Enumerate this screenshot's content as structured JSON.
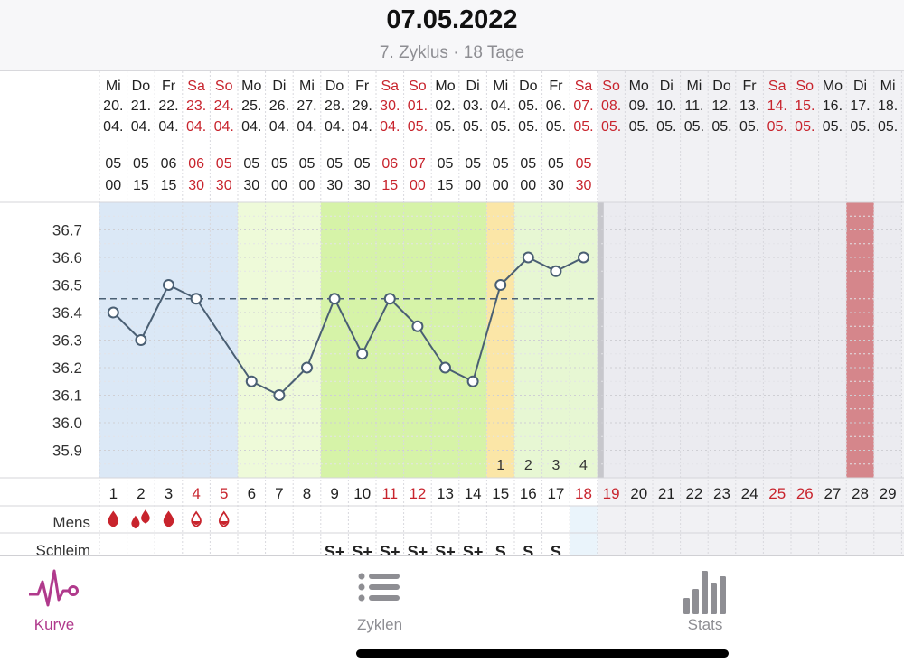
{
  "header": {
    "date": "07.05.2022",
    "cycle_info": "7. Zyklus · 18 Tage"
  },
  "colors": {
    "weekend_red": "#c8242d",
    "text_dark": "#222222",
    "line": "#4a5f73",
    "dashed_line": "#4a5f73",
    "menstruation_bg": "#dbe8f6",
    "fertile_light_bg": "#eefad9",
    "fertile_bg": "#d6f3a8",
    "peak_bg": "#fbe6a7",
    "post_bg": "#e7f7d3",
    "future_bg": "#ebebf0",
    "period_forecast": "#d5868b",
    "accent": "#b03a8c",
    "tab_inactive": "#8e8e93"
  },
  "days": [
    {
      "wd": "Mi",
      "d": "20.",
      "m": "04.",
      "h": "05",
      "mi": "00",
      "n": "1",
      "we": false
    },
    {
      "wd": "Do",
      "d": "21.",
      "m": "04.",
      "h": "05",
      "mi": "15",
      "n": "2",
      "we": false
    },
    {
      "wd": "Fr",
      "d": "22.",
      "m": "04.",
      "h": "06",
      "mi": "15",
      "n": "3",
      "we": false
    },
    {
      "wd": "Sa",
      "d": "23.",
      "m": "04.",
      "h": "06",
      "mi": "30",
      "n": "4",
      "we": true
    },
    {
      "wd": "So",
      "d": "24.",
      "m": "04.",
      "h": "05",
      "mi": "30",
      "n": "5",
      "we": true
    },
    {
      "wd": "Mo",
      "d": "25.",
      "m": "04.",
      "h": "05",
      "mi": "30",
      "n": "6",
      "we": false
    },
    {
      "wd": "Di",
      "d": "26.",
      "m": "04.",
      "h": "05",
      "mi": "00",
      "n": "7",
      "we": false
    },
    {
      "wd": "Mi",
      "d": "27.",
      "m": "04.",
      "h": "05",
      "mi": "00",
      "n": "8",
      "we": false
    },
    {
      "wd": "Do",
      "d": "28.",
      "m": "04.",
      "h": "05",
      "mi": "30",
      "n": "9",
      "we": false
    },
    {
      "wd": "Fr",
      "d": "29.",
      "m": "04.",
      "h": "05",
      "mi": "30",
      "n": "10",
      "we": false
    },
    {
      "wd": "Sa",
      "d": "30.",
      "m": "04.",
      "h": "06",
      "mi": "15",
      "n": "11",
      "we": true
    },
    {
      "wd": "So",
      "d": "01.",
      "m": "05.",
      "h": "07",
      "mi": "00",
      "n": "12",
      "we": true
    },
    {
      "wd": "Mo",
      "d": "02.",
      "m": "05.",
      "h": "05",
      "mi": "15",
      "n": "13",
      "we": false
    },
    {
      "wd": "Di",
      "d": "03.",
      "m": "05.",
      "h": "05",
      "mi": "00",
      "n": "14",
      "we": false
    },
    {
      "wd": "Mi",
      "d": "04.",
      "m": "05.",
      "h": "05",
      "mi": "00",
      "n": "15",
      "we": false
    },
    {
      "wd": "Do",
      "d": "05.",
      "m": "05.",
      "h": "05",
      "mi": "00",
      "n": "16",
      "we": false
    },
    {
      "wd": "Fr",
      "d": "06.",
      "m": "05.",
      "h": "05",
      "mi": "30",
      "n": "17",
      "we": false
    },
    {
      "wd": "Sa",
      "d": "07.",
      "m": "05.",
      "h": "05",
      "mi": "30",
      "n": "18",
      "we": true
    },
    {
      "wd": "So",
      "d": "08.",
      "m": "05.",
      "h": "",
      "mi": "",
      "n": "19",
      "we": true
    },
    {
      "wd": "Mo",
      "d": "09.",
      "m": "05.",
      "h": "",
      "mi": "",
      "n": "20",
      "we": false
    },
    {
      "wd": "Di",
      "d": "10.",
      "m": "05.",
      "h": "",
      "mi": "",
      "n": "21",
      "we": false
    },
    {
      "wd": "Mi",
      "d": "11.",
      "m": "05.",
      "h": "",
      "mi": "",
      "n": "22",
      "we": false
    },
    {
      "wd": "Do",
      "d": "12.",
      "m": "05.",
      "h": "",
      "mi": "",
      "n": "23",
      "we": false
    },
    {
      "wd": "Fr",
      "d": "13.",
      "m": "05.",
      "h": "",
      "mi": "",
      "n": "24",
      "we": false
    },
    {
      "wd": "Sa",
      "d": "14.",
      "m": "05.",
      "h": "",
      "mi": "",
      "n": "25",
      "we": true
    },
    {
      "wd": "So",
      "d": "15.",
      "m": "05.",
      "h": "",
      "mi": "",
      "n": "26",
      "we": true
    },
    {
      "wd": "Mo",
      "d": "16.",
      "m": "05.",
      "h": "",
      "mi": "",
      "n": "27",
      "we": false
    },
    {
      "wd": "Di",
      "d": "17.",
      "m": "05.",
      "h": "",
      "mi": "",
      "n": "28",
      "we": false
    },
    {
      "wd": "Mi",
      "d": "18.",
      "m": "05.",
      "h": "",
      "mi": "",
      "n": "29",
      "we": false
    }
  ],
  "chart_data": {
    "type": "line",
    "title": "",
    "xlabel": "",
    "ylabel": "",
    "ylim": [
      35.8,
      36.8
    ],
    "yticks": [
      "36.7",
      "36.6",
      "36.5",
      "36.4",
      "36.3",
      "36.2",
      "36.1",
      "36.0",
      "35.9"
    ],
    "x": [
      1,
      2,
      3,
      4,
      5,
      6,
      7,
      8,
      9,
      10,
      11,
      12,
      13,
      14,
      15,
      16,
      17,
      18
    ],
    "values": [
      36.4,
      36.3,
      36.5,
      36.45,
      null,
      36.15,
      36.1,
      36.2,
      36.45,
      36.25,
      36.45,
      36.35,
      36.2,
      36.15,
      36.5,
      36.6,
      36.55,
      36.6
    ],
    "coverline": 36.45,
    "coverline_days": [
      1,
      18
    ],
    "post_ovulation_labels": [
      "1",
      "2",
      "3",
      "4"
    ],
    "post_ovulation_start_day": 15,
    "phases": [
      {
        "from": 1,
        "to": 5,
        "kind": "menstruation"
      },
      {
        "from": 6,
        "to": 8,
        "kind": "fertile-light"
      },
      {
        "from": 9,
        "to": 14,
        "kind": "fertile"
      },
      {
        "from": 15,
        "to": 15,
        "kind": "peak"
      },
      {
        "from": 16,
        "to": 18,
        "kind": "post"
      },
      {
        "from": 19,
        "to": 27,
        "kind": "future"
      },
      {
        "from": 28,
        "to": 28,
        "kind": "period-forecast"
      },
      {
        "from": 29,
        "to": 29,
        "kind": "future"
      }
    ],
    "grid": true
  },
  "mens": {
    "label": "Mens",
    "levels": [
      3,
      4,
      3,
      2,
      2,
      0,
      0,
      0,
      0,
      0,
      0,
      0,
      0,
      0,
      0,
      0,
      0,
      0
    ]
  },
  "schleim": {
    "label": "Schleim",
    "values": [
      "",
      "",
      "",
      "",
      "",
      "",
      "",
      "",
      "S+",
      "S+",
      "S+",
      "S+",
      "S+",
      "S+",
      "S",
      "S",
      "S",
      ""
    ]
  },
  "tabs": [
    {
      "label": "Kurve",
      "icon": "heart-rate-icon",
      "active": true
    },
    {
      "label": "Zyklen",
      "icon": "list-icon",
      "active": false
    },
    {
      "label": "Stats",
      "icon": "bar-stats-icon",
      "active": false
    }
  ]
}
